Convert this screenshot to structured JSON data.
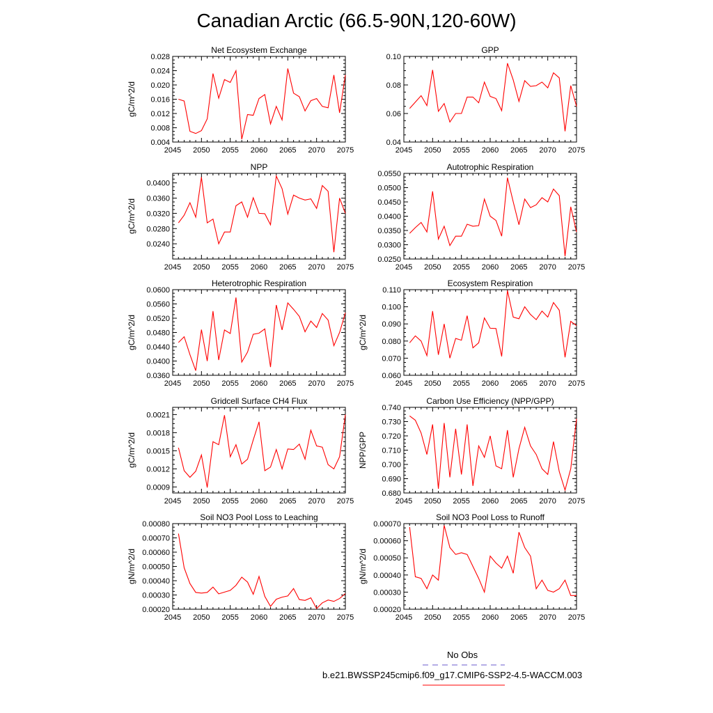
{
  "figure_title": "Canadian Arctic (66.5-90N,120-60W)",
  "colors": {
    "series_line": "#ff0000",
    "obs_line": "#6a5acd",
    "axis": "#000000"
  },
  "legend": {
    "obs_label": "No Obs",
    "model_label": "b.e21.BWSSP245cmip6.f09_g17.CMIP6-SSP2-4.5-WACCM.003"
  },
  "chart_data": [
    {
      "type": "line",
      "title": "Net Ecosystem Exchange",
      "ylabel": "gC/m^2/d",
      "xlim": [
        2045,
        2075
      ],
      "ylim": [
        0.004,
        0.028
      ],
      "xticks": [
        "2045",
        "2050",
        "2055",
        "2060",
        "2065",
        "2070",
        "2075"
      ],
      "yticks": [
        "0.004",
        "0.008",
        "0.012",
        "0.016",
        "0.020",
        "0.024",
        "0.028"
      ],
      "x": [
        2046,
        2047,
        2048,
        2049,
        2050,
        2051,
        2052,
        2053,
        2054,
        2055,
        2056,
        2057,
        2058,
        2059,
        2060,
        2061,
        2062,
        2063,
        2064,
        2065,
        2066,
        2067,
        2068,
        2069,
        2070,
        2071,
        2072,
        2073,
        2074,
        2075
      ],
      "values": [
        0.016,
        0.0155,
        0.007,
        0.0064,
        0.0072,
        0.0105,
        0.0232,
        0.0163,
        0.0215,
        0.0207,
        0.024,
        0.0048,
        0.0117,
        0.0115,
        0.0162,
        0.0173,
        0.0091,
        0.014,
        0.0102,
        0.0246,
        0.0177,
        0.0167,
        0.0127,
        0.0156,
        0.0162,
        0.014,
        0.0136,
        0.0228,
        0.0122,
        0.0228
      ]
    },
    {
      "type": "line",
      "title": "GPP",
      "ylabel": "",
      "xlim": [
        2045,
        2075
      ],
      "ylim": [
        0.04,
        0.1
      ],
      "xticks": [
        "2045",
        "2050",
        "2055",
        "2060",
        "2065",
        "2070",
        "2075"
      ],
      "yticks": [
        "0.04",
        "0.06",
        "0.08",
        "0.10"
      ],
      "x": [
        2046,
        2047,
        2048,
        2049,
        2050,
        2051,
        2052,
        2053,
        2054,
        2055,
        2056,
        2057,
        2058,
        2059,
        2060,
        2061,
        2062,
        2063,
        2064,
        2065,
        2066,
        2067,
        2068,
        2069,
        2070,
        2071,
        2072,
        2073,
        2074,
        2075
      ],
      "values": [
        0.0635,
        0.068,
        0.0725,
        0.0655,
        0.0905,
        0.0615,
        0.067,
        0.054,
        0.06,
        0.06,
        0.0715,
        0.0715,
        0.0675,
        0.082,
        0.072,
        0.0705,
        0.062,
        0.0952,
        0.0835,
        0.0685,
        0.083,
        0.079,
        0.0795,
        0.082,
        0.078,
        0.0885,
        0.085,
        0.0475,
        0.0795,
        0.065
      ]
    },
    {
      "type": "line",
      "title": "NPP",
      "ylabel": "gC/m^2/d",
      "xlim": [
        2045,
        2075
      ],
      "ylim": [
        0.02,
        0.0425
      ],
      "xticks": [
        "2045",
        "2050",
        "2055",
        "2060",
        "2065",
        "2070",
        "2075"
      ],
      "yticks": [
        "0.0240",
        "0.0280",
        "0.0320",
        "0.0360",
        "0.0400"
      ],
      "x": [
        2046,
        2047,
        2048,
        2049,
        2050,
        2051,
        2052,
        2053,
        2054,
        2055,
        2056,
        2057,
        2058,
        2059,
        2060,
        2061,
        2062,
        2063,
        2064,
        2065,
        2066,
        2067,
        2068,
        2069,
        2070,
        2071,
        2072,
        2073,
        2074,
        2075
      ],
      "values": [
        0.0295,
        0.0315,
        0.0348,
        0.031,
        0.0415,
        0.0295,
        0.0305,
        0.024,
        0.0271,
        0.0271,
        0.034,
        0.035,
        0.031,
        0.0361,
        0.032,
        0.0319,
        0.029,
        0.0418,
        0.0385,
        0.0318,
        0.0368,
        0.036,
        0.0355,
        0.0358,
        0.0333,
        0.0393,
        0.0378,
        0.0218,
        0.036,
        0.032
      ]
    },
    {
      "type": "line",
      "title": "Autotrophic Respiration",
      "ylabel": "",
      "xlim": [
        2045,
        2075
      ],
      "ylim": [
        0.025,
        0.055
      ],
      "xticks": [
        "2045",
        "2050",
        "2055",
        "2060",
        "2065",
        "2070",
        "2075"
      ],
      "yticks": [
        "0.0250",
        "0.0300",
        "0.0350",
        "0.0400",
        "0.0450",
        "0.0500",
        "0.0550"
      ],
      "x": [
        2046,
        2047,
        2048,
        2049,
        2050,
        2051,
        2052,
        2053,
        2054,
        2055,
        2056,
        2057,
        2058,
        2059,
        2060,
        2061,
        2062,
        2063,
        2064,
        2065,
        2066,
        2067,
        2068,
        2069,
        2070,
        2071,
        2072,
        2073,
        2074,
        2075
      ],
      "values": [
        0.034,
        0.036,
        0.0378,
        0.0345,
        0.0487,
        0.032,
        0.0365,
        0.0297,
        0.033,
        0.033,
        0.0372,
        0.0365,
        0.0367,
        0.046,
        0.04,
        0.0385,
        0.033,
        0.0535,
        0.045,
        0.037,
        0.046,
        0.043,
        0.044,
        0.0465,
        0.045,
        0.0495,
        0.0472,
        0.026,
        0.0433,
        0.0345
      ]
    },
    {
      "type": "line",
      "title": "Heterotrophic Respiration",
      "ylabel": "gC/m^2/d",
      "xlim": [
        2045,
        2075
      ],
      "ylim": [
        0.036,
        0.06
      ],
      "xticks": [
        "2045",
        "2050",
        "2055",
        "2060",
        "2065",
        "2070",
        "2075"
      ],
      "yticks": [
        "0.0360",
        "0.0400",
        "0.0440",
        "0.0480",
        "0.0520",
        "0.0560",
        "0.0600"
      ],
      "x": [
        2046,
        2047,
        2048,
        2049,
        2050,
        2051,
        2052,
        2053,
        2054,
        2055,
        2056,
        2057,
        2058,
        2059,
        2060,
        2061,
        2062,
        2063,
        2064,
        2065,
        2066,
        2067,
        2068,
        2069,
        2070,
        2071,
        2072,
        2073,
        2074,
        2075
      ],
      "values": [
        0.0452,
        0.0468,
        0.0418,
        0.0373,
        0.0488,
        0.04,
        0.054,
        0.0403,
        0.0487,
        0.0477,
        0.0578,
        0.0397,
        0.0425,
        0.0475,
        0.0478,
        0.049,
        0.0383,
        0.0557,
        0.0487,
        0.0563,
        0.0545,
        0.0525,
        0.0482,
        0.0512,
        0.0494,
        0.0533,
        0.0515,
        0.0443,
        0.048,
        0.0535
      ]
    },
    {
      "type": "line",
      "title": "Ecosystem Respiration",
      "ylabel": "gC/m^2/d",
      "xlim": [
        2045,
        2075
      ],
      "ylim": [
        0.06,
        0.11
      ],
      "xticks": [
        "2045",
        "2050",
        "2055",
        "2060",
        "2065",
        "2070",
        "2075"
      ],
      "yticks": [
        "0.060",
        "0.070",
        "0.080",
        "0.090",
        "0.100",
        "0.110"
      ],
      "x": [
        2046,
        2047,
        2048,
        2049,
        2050,
        2051,
        2052,
        2053,
        2054,
        2055,
        2056,
        2057,
        2058,
        2059,
        2060,
        2061,
        2062,
        2063,
        2064,
        2065,
        2066,
        2067,
        2068,
        2069,
        2070,
        2071,
        2072,
        2073,
        2074,
        2075
      ],
      "values": [
        0.079,
        0.083,
        0.08,
        0.0715,
        0.0975,
        0.072,
        0.09,
        0.07,
        0.0815,
        0.0805,
        0.0948,
        0.076,
        0.079,
        0.0935,
        0.0875,
        0.0873,
        0.071,
        0.1095,
        0.094,
        0.093,
        0.1,
        0.0955,
        0.0925,
        0.0975,
        0.094,
        0.1025,
        0.098,
        0.0705,
        0.0915,
        0.089
      ]
    },
    {
      "type": "line",
      "title": "Gridcell Surface CH4 Flux",
      "ylabel": "gC/m^2/d",
      "xlim": [
        2045,
        2075
      ],
      "ylim": [
        0.0008,
        0.00222
      ],
      "xticks": [
        "2045",
        "2050",
        "2055",
        "2060",
        "2065",
        "2070",
        "2075"
      ],
      "yticks": [
        "0.0009",
        "0.0012",
        "0.0015",
        "0.0018",
        "0.0021"
      ],
      "x": [
        2046,
        2047,
        2048,
        2049,
        2050,
        2051,
        2052,
        2053,
        2054,
        2055,
        2056,
        2057,
        2058,
        2059,
        2060,
        2061,
        2062,
        2063,
        2064,
        2065,
        2066,
        2067,
        2068,
        2069,
        2070,
        2071,
        2072,
        2073,
        2074,
        2075
      ],
      "values": [
        0.00155,
        0.00117,
        0.00106,
        0.00116,
        0.00143,
        0.00089,
        0.00165,
        0.0016,
        0.00209,
        0.0014,
        0.0016,
        0.00128,
        0.00136,
        0.00168,
        0.00198,
        0.00117,
        0.00123,
        0.00152,
        0.0012,
        0.00153,
        0.00152,
        0.00161,
        0.00136,
        0.00184,
        0.00158,
        0.00156,
        0.00127,
        0.0012,
        0.0014,
        0.0021
      ]
    },
    {
      "type": "line",
      "title": "Carbon Use Efficiency (NPP/GPP)",
      "ylabel": "NPP/GPP",
      "xlim": [
        2045,
        2075
      ],
      "ylim": [
        0.68,
        0.74
      ],
      "xticks": [
        "2045",
        "2050",
        "2055",
        "2060",
        "2065",
        "2070",
        "2075"
      ],
      "yticks": [
        "0.680",
        "0.690",
        "0.700",
        "0.710",
        "0.720",
        "0.730",
        "0.740"
      ],
      "x": [
        2046,
        2047,
        2048,
        2049,
        2050,
        2051,
        2052,
        2053,
        2054,
        2055,
        2056,
        2057,
        2058,
        2059,
        2060,
        2061,
        2062,
        2063,
        2064,
        2065,
        2066,
        2067,
        2068,
        2069,
        2070,
        2071,
        2072,
        2073,
        2074,
        2075
      ],
      "values": [
        0.734,
        0.731,
        0.722,
        0.707,
        0.728,
        0.683,
        0.729,
        0.691,
        0.725,
        0.693,
        0.728,
        0.685,
        0.713,
        0.705,
        0.72,
        0.699,
        0.697,
        0.724,
        0.691,
        0.711,
        0.726,
        0.713,
        0.707,
        0.697,
        0.693,
        0.716,
        0.695,
        0.682,
        0.697,
        0.732
      ]
    },
    {
      "type": "line",
      "title": "Soil NO3 Pool Loss to Leaching",
      "ylabel": "gN/m^2/d",
      "xlim": [
        2045,
        2075
      ],
      "ylim": [
        0.0002,
        0.0008
      ],
      "xticks": [
        "2045",
        "2050",
        "2055",
        "2060",
        "2065",
        "2070",
        "2075"
      ],
      "yticks": [
        "0.00020",
        "0.00030",
        "0.00040",
        "0.00050",
        "0.00060",
        "0.00070",
        "0.00080"
      ],
      "x": [
        2046,
        2047,
        2048,
        2049,
        2050,
        2051,
        2052,
        2053,
        2054,
        2055,
        2056,
        2057,
        2058,
        2059,
        2060,
        2061,
        2062,
        2063,
        2064,
        2065,
        2066,
        2067,
        2068,
        2069,
        2070,
        2071,
        2072,
        2073,
        2074,
        2075
      ],
      "values": [
        0.00073,
        0.00049,
        0.00038,
        0.000318,
        0.000313,
        0.000318,
        0.000355,
        0.000308,
        0.00032,
        0.000332,
        0.000368,
        0.000425,
        0.00039,
        0.000305,
        0.00043,
        0.00029,
        0.00022,
        0.00027,
        0.000285,
        0.000293,
        0.000345,
        0.000268,
        0.000262,
        0.00028,
        0.000205,
        0.000245,
        0.000265,
        0.000255,
        0.000275,
        0.00031
      ]
    },
    {
      "type": "line",
      "title": "Soil NO3 Pool Loss to Runoff",
      "ylabel": "gN/m^2/d",
      "xlim": [
        2045,
        2075
      ],
      "ylim": [
        0.0002,
        0.0007
      ],
      "xticks": [
        "2045",
        "2050",
        "2055",
        "2060",
        "2065",
        "2070",
        "2075"
      ],
      "yticks": [
        "0.00020",
        "0.00030",
        "0.00040",
        "0.00050",
        "0.00060",
        "0.00070"
      ],
      "x": [
        2046,
        2047,
        2048,
        2049,
        2050,
        2051,
        2052,
        2053,
        2054,
        2055,
        2056,
        2057,
        2058,
        2059,
        2060,
        2061,
        2062,
        2063,
        2064,
        2065,
        2066,
        2067,
        2068,
        2069,
        2070,
        2071,
        2072,
        2073,
        2074,
        2075
      ],
      "values": [
        0.00068,
        0.00039,
        0.00038,
        0.00032,
        0.0004,
        0.00037,
        0.00069,
        0.00056,
        0.00052,
        0.00053,
        0.00052,
        0.00045,
        0.00038,
        0.0003,
        0.00051,
        0.00047,
        0.00044,
        0.00051,
        0.00041,
        0.00065,
        0.00056,
        0.00051,
        0.00032,
        0.00037,
        0.00031,
        0.0003,
        0.00032,
        0.00037,
        0.00028,
        0.00028
      ]
    }
  ]
}
